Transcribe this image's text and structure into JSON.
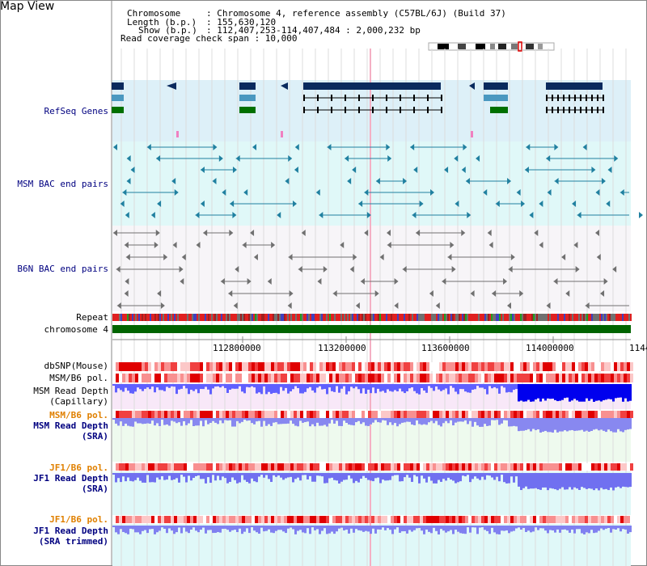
{
  "title": "Map View",
  "info": {
    "chromosome_key": "Chromosome",
    "chromosome_val": ": Chromosome 4, reference assembly (C57BL/6J) (Build 37)",
    "length_key": "Length (b.p.)",
    "length_val": ": 155,630,120",
    "show_key": "Show (b.p.)",
    "show_val": ": 112,407,253-114,407,484 : 2,000,232 bp",
    "coverage": "Read coverage check span : 10,000"
  },
  "tracks": {
    "refseq": "RefSeq Genes",
    "msm_bac": "MSM BAC end pairs",
    "b6n_bac": "B6N BAC end pairs",
    "repeat": "Repeat",
    "chromosome": "chromosome 4",
    "dbsnp": "dbSNP(Mouse)",
    "msm_pol1": "MSM/B6 pol.",
    "msm_depth_cap_1": "MSM Read Depth",
    "msm_depth_cap_2": "(Capillary)",
    "msm_pol2": "MSM/B6 pol.",
    "msm_depth_sra_1": "MSM Read Depth",
    "msm_depth_sra_2": "(SRA)",
    "jf1_pol1": "JF1/B6 pol.",
    "jf1_depth_sra_1": "JF1 Read Depth",
    "jf1_depth_sra_2": "(SRA)",
    "jf1_pol2": "JF1/B6 pol.",
    "jf1_depth_trim_1": "JF1 Read Depth",
    "jf1_depth_trim_2": "(SRA trimmed)"
  },
  "axis": {
    "ticks": [
      "112800000",
      "113200000",
      "113600000",
      "114000000",
      "1144"
    ]
  },
  "colors": {
    "navy": "#000080",
    "orange": "#e08000",
    "refseq_bg": "#ddf0f8",
    "bac_bg": "#e0f8f8",
    "b6n_bg": "#f5f5f5",
    "chromosome_green": "#006400",
    "depth_blue": "#0000ff",
    "depth_light": "#8080ff"
  }
}
